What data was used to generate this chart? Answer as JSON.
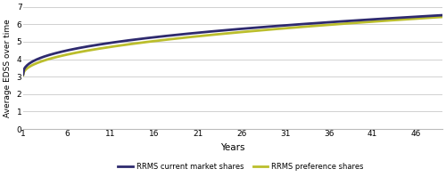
{
  "title": "",
  "xlabel": "Years",
  "ylabel": "Average EDSS over time",
  "x_ticks": [
    1,
    6,
    11,
    16,
    21,
    26,
    31,
    36,
    41,
    46
  ],
  "ylim": [
    0,
    7
  ],
  "xlim": [
    1,
    49
  ],
  "yticks": [
    0,
    1,
    2,
    3,
    4,
    5,
    6,
    7
  ],
  "line1_label": "RRMS current market shares",
  "line2_label": "RRMS preference shares",
  "line1_color": "#2E2A6E",
  "line2_color": "#BBBE2C",
  "background_color": "#ffffff",
  "grid_color": "#d0d0d0",
  "line_width": 2.0,
  "x_start": 1,
  "x_end": 49,
  "y1_start": 3.12,
  "y1_end": 6.52,
  "y2_start": 3.08,
  "y2_end": 6.42,
  "power1": 0.4,
  "power2": 0.46
}
